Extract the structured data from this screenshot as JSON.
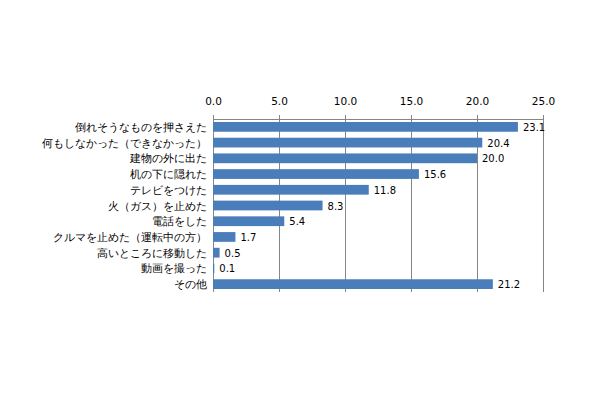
{
  "chart_data": {
    "type": "bar",
    "orientation": "horizontal",
    "categories": [
      "倒れそうなものを押さえた",
      "何もしなかった（できなかった）",
      "建物の外に出た",
      "机の下に隠れた",
      "テレビをつけた",
      "火（ガス）を止めた",
      "電話をした",
      "クルマを止めた（運転中の方）",
      "高いところに移動した",
      "動画を撮った",
      "その他"
    ],
    "values": [
      23.1,
      20.4,
      20.0,
      15.6,
      11.8,
      8.3,
      5.4,
      1.7,
      0.5,
      0.1,
      21.2
    ],
    "value_labels": [
      "23.1",
      "20.4",
      "20.0",
      "15.6",
      "11.8",
      "8.3",
      "5.4",
      "1.7",
      "0.5",
      "0.1",
      "21.2"
    ],
    "data_labels": true,
    "color": "#4a7ebb",
    "xlim": [
      0,
      25
    ],
    "xticks": [
      {
        "value": 0,
        "label": "0.0"
      },
      {
        "value": 5,
        "label": "5.0"
      },
      {
        "value": 10,
        "label": "10.0"
      },
      {
        "value": 15,
        "label": "15.0"
      },
      {
        "value": 20,
        "label": "20.0"
      },
      {
        "value": 25,
        "label": "25.0"
      }
    ],
    "grid": true
  }
}
